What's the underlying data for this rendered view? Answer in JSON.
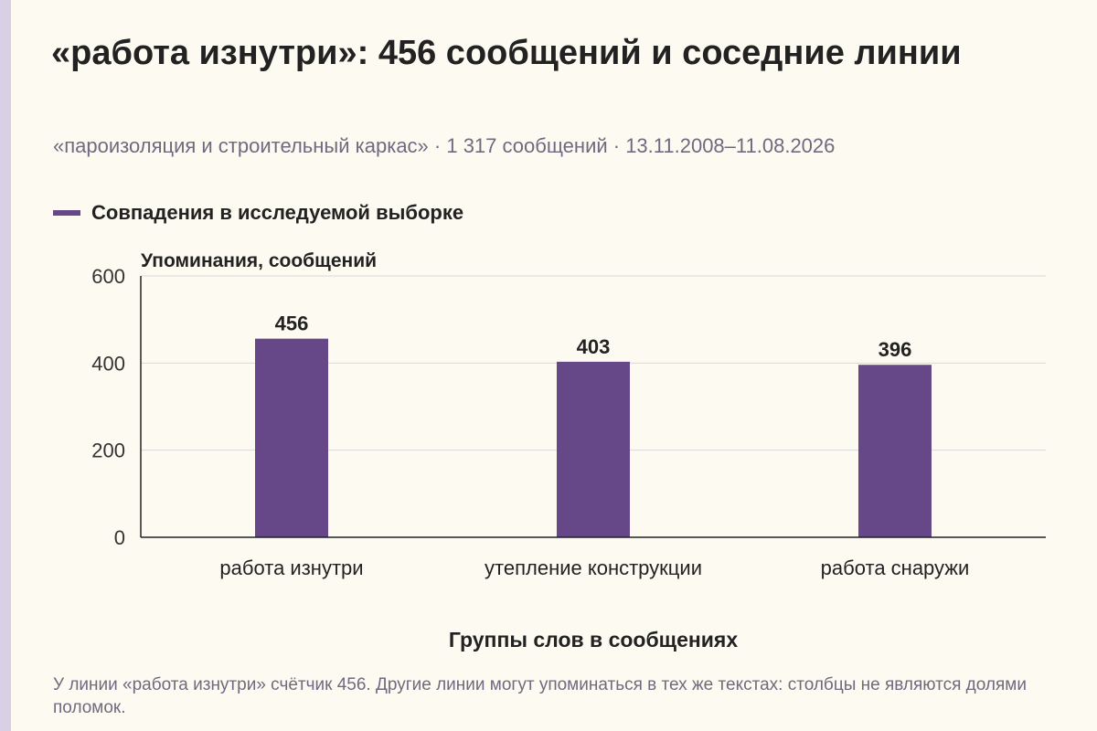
{
  "title": "«работа изнутри»: 456 сообщений и соседние линии",
  "subtitle": "«пароизоляция и строительный каркас» · 1 317 сообщений · 13.11.2008–11.08.2026",
  "footnote": "У линии «работа изнутри» счётчик 456. Другие линии могут упоминаться в тех же текстах: столбцы не являются долями поломок.",
  "colors": {
    "bar": "#664787",
    "accent_strip": "#d9d0e6",
    "background": "#fdfbf1",
    "gridline": "#d8d8d8",
    "axis": "#222222"
  },
  "chart_data": {
    "type": "bar",
    "categories": [
      "работа изнутри",
      "утепление конструкции",
      "работа снаружи"
    ],
    "series": [
      {
        "name": "Совпадения в исследуемой выборке",
        "values": [
          456,
          403,
          396
        ]
      }
    ],
    "ylabel": "Упоминания, сообщений",
    "xlabel": "Группы слов в сообщениях",
    "ylim": [
      0,
      600
    ],
    "yticks": [
      0,
      200,
      400,
      600
    ],
    "data_labels": [
      "456",
      "403",
      "396"
    ],
    "grid": true,
    "legend": "top-left"
  }
}
